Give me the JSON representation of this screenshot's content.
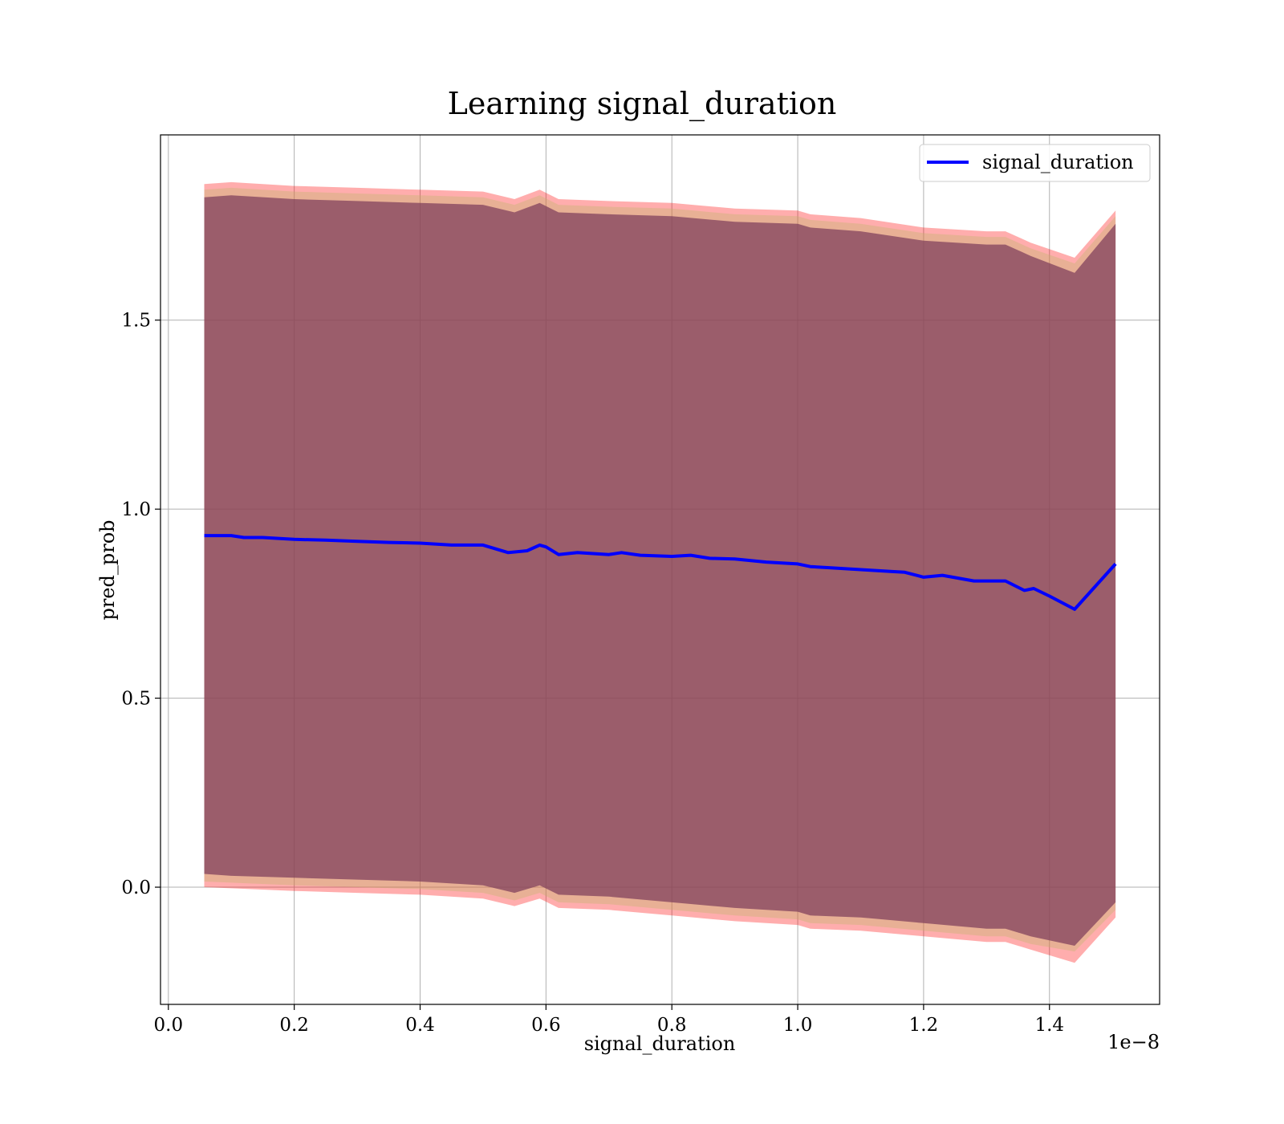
{
  "chart_data": {
    "type": "line",
    "title": "Learning signal_duration",
    "xlabel": "signal_duration",
    "ylabel": "pred_prob",
    "x_offset_label": "1e−8",
    "x_scale_exponent": -8,
    "xlim": [
      -0.0125,
      1.575
    ],
    "ylim": [
      -0.31,
      1.99
    ],
    "xticks": [
      0.0,
      0.2,
      0.4,
      0.6,
      0.8,
      1.0,
      1.2,
      1.4
    ],
    "xtick_labels": [
      "0.0",
      "0.2",
      "0.4",
      "0.6",
      "0.8",
      "1.0",
      "1.2",
      "1.4"
    ],
    "yticks": [
      0.0,
      0.5,
      1.0,
      1.5
    ],
    "ytick_labels": [
      "0.0",
      "0.5",
      "1.0",
      "1.5"
    ],
    "grid": true,
    "legend_position": "upper right",
    "series": [
      {
        "name": "signal_duration",
        "color": "#0000ff",
        "x": [
          0.057,
          0.08,
          0.1,
          0.12,
          0.15,
          0.18,
          0.2,
          0.25,
          0.3,
          0.35,
          0.4,
          0.45,
          0.5,
          0.54,
          0.57,
          0.59,
          0.6,
          0.62,
          0.65,
          0.7,
          0.72,
          0.75,
          0.8,
          0.83,
          0.86,
          0.9,
          0.95,
          1.0,
          1.02,
          1.05,
          1.1,
          1.15,
          1.17,
          1.2,
          1.23,
          1.28,
          1.33,
          1.36,
          1.375,
          1.4,
          1.44,
          1.505
        ],
        "y": [
          0.93,
          0.93,
          0.93,
          0.925,
          0.925,
          0.922,
          0.92,
          0.918,
          0.915,
          0.912,
          0.91,
          0.905,
          0.905,
          0.885,
          0.89,
          0.905,
          0.9,
          0.88,
          0.885,
          0.88,
          0.885,
          0.878,
          0.875,
          0.878,
          0.87,
          0.868,
          0.86,
          0.855,
          0.848,
          0.845,
          0.84,
          0.835,
          0.833,
          0.82,
          0.825,
          0.81,
          0.81,
          0.785,
          0.79,
          0.77,
          0.735,
          0.855
        ]
      }
    ],
    "bands": [
      {
        "color": "#ff0000",
        "opacity": 0.32,
        "x": [
          0.057,
          0.1,
          0.2,
          0.3,
          0.4,
          0.5,
          0.55,
          0.59,
          0.62,
          0.7,
          0.8,
          0.9,
          1.0,
          1.02,
          1.1,
          1.2,
          1.3,
          1.33,
          1.37,
          1.44,
          1.505
        ],
        "upper": [
          1.86,
          1.865,
          1.855,
          1.85,
          1.845,
          1.84,
          1.82,
          1.845,
          1.82,
          1.815,
          1.81,
          1.795,
          1.79,
          1.78,
          1.77,
          1.745,
          1.735,
          1.735,
          1.705,
          1.665,
          1.79
        ],
        "lower": [
          0.0,
          -0.003,
          -0.01,
          -0.015,
          -0.02,
          -0.03,
          -0.05,
          -0.03,
          -0.055,
          -0.06,
          -0.075,
          -0.09,
          -0.1,
          -0.11,
          -0.115,
          -0.13,
          -0.145,
          -0.145,
          -0.165,
          -0.2,
          -0.08
        ]
      },
      {
        "color": "#bdb76b",
        "opacity": 0.35,
        "x": [
          0.057,
          0.1,
          0.2,
          0.3,
          0.4,
          0.5,
          0.55,
          0.59,
          0.62,
          0.7,
          0.8,
          0.9,
          1.0,
          1.02,
          1.1,
          1.2,
          1.3,
          1.33,
          1.37,
          1.44,
          1.505
        ],
        "upper": [
          1.845,
          1.85,
          1.84,
          1.835,
          1.83,
          1.825,
          1.805,
          1.83,
          1.805,
          1.8,
          1.795,
          1.78,
          1.775,
          1.765,
          1.755,
          1.73,
          1.72,
          1.72,
          1.69,
          1.65,
          1.775
        ],
        "lower": [
          0.015,
          0.012,
          0.005,
          0.0,
          -0.005,
          -0.015,
          -0.035,
          -0.015,
          -0.04,
          -0.045,
          -0.06,
          -0.075,
          -0.085,
          -0.095,
          -0.1,
          -0.115,
          -0.13,
          -0.13,
          -0.15,
          -0.17,
          -0.06
        ]
      },
      {
        "color": "#7b3a5a",
        "opacity": 0.7,
        "x": [
          0.057,
          0.1,
          0.2,
          0.3,
          0.4,
          0.5,
          0.55,
          0.59,
          0.62,
          0.7,
          0.8,
          0.9,
          1.0,
          1.02,
          1.1,
          1.2,
          1.3,
          1.33,
          1.37,
          1.44,
          1.505
        ],
        "upper": [
          1.825,
          1.83,
          1.82,
          1.815,
          1.81,
          1.805,
          1.785,
          1.81,
          1.785,
          1.78,
          1.775,
          1.76,
          1.755,
          1.745,
          1.735,
          1.71,
          1.7,
          1.7,
          1.67,
          1.625,
          1.755
        ],
        "lower": [
          0.035,
          0.03,
          0.025,
          0.02,
          0.015,
          0.005,
          -0.015,
          0.005,
          -0.02,
          -0.025,
          -0.04,
          -0.055,
          -0.065,
          -0.075,
          -0.08,
          -0.095,
          -0.11,
          -0.11,
          -0.13,
          -0.155,
          -0.04
        ]
      }
    ]
  }
}
